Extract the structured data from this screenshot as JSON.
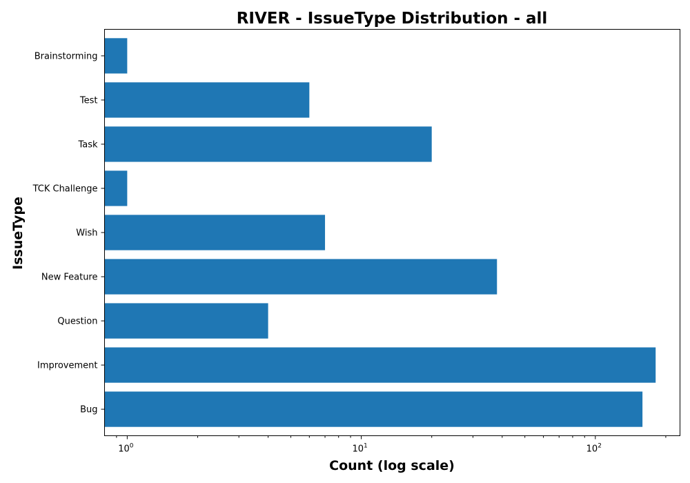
{
  "chart_data": {
    "type": "bar",
    "orientation": "horizontal",
    "title": "RIVER - IssueType Distribution - all",
    "xlabel": "Count (log scale)",
    "ylabel": "IssueType",
    "xscale": "log",
    "xlim": [
      0.8,
      230
    ],
    "x_ticks": [
      {
        "value": 1,
        "base": "10",
        "exp": "0"
      },
      {
        "value": 10,
        "base": "10",
        "exp": "1"
      },
      {
        "value": 100,
        "base": "10",
        "exp": "2"
      }
    ],
    "categories": [
      "Bug",
      "Improvement",
      "Question",
      "New Feature",
      "Wish",
      "TCK Challenge",
      "Task",
      "Test",
      "Brainstorming"
    ],
    "values": [
      159,
      181,
      4,
      38,
      7,
      1,
      20,
      6,
      1
    ],
    "bar_color": "#1f77b4",
    "grid": false,
    "legend": "none"
  }
}
